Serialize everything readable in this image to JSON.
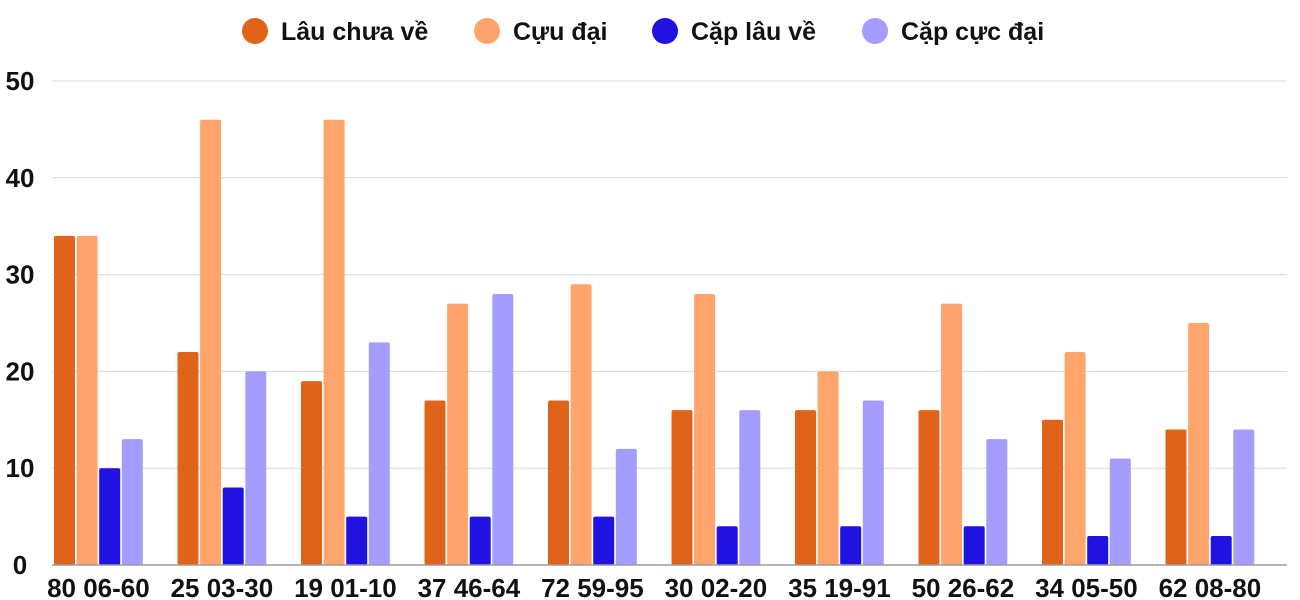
{
  "chart_data": {
    "type": "bar",
    "categories": [
      "80 06-60",
      "25 03-30",
      "19 01-10",
      "37 46-64",
      "72 59-95",
      "30 02-20",
      "35 19-91",
      "50 26-62",
      "34 05-50",
      "62 08-80"
    ],
    "series": [
      {
        "name": "Lâu chưa về",
        "color": "#e0631a",
        "values": [
          34,
          22,
          19,
          17,
          17,
          16,
          16,
          16,
          15,
          14
        ]
      },
      {
        "name": "Cựu đại",
        "color": "#ffa56b",
        "values": [
          34,
          46,
          46,
          27,
          29,
          28,
          20,
          27,
          22,
          25
        ]
      },
      {
        "name": "Cặp lâu về",
        "color": "#2012e0",
        "values": [
          10,
          8,
          5,
          5,
          5,
          4,
          4,
          4,
          3,
          3
        ]
      },
      {
        "name": "Cặp cực đại",
        "color": "#a59cff",
        "values": [
          13,
          20,
          23,
          28,
          12,
          16,
          17,
          13,
          11,
          14
        ]
      }
    ],
    "yticks": [
      0,
      10,
      20,
      30,
      40,
      50
    ],
    "ylim": [
      0,
      50
    ],
    "grid": true,
    "legend": "top-center"
  }
}
